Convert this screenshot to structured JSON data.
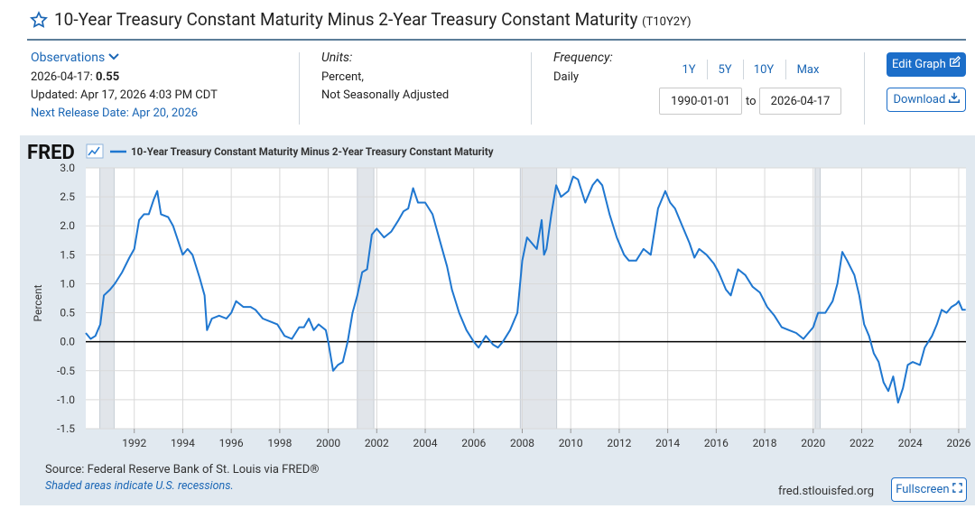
{
  "header": {
    "title": "10-Year Treasury Constant Maturity Minus 2-Year Treasury Constant Maturity",
    "ticker": "(T10Y2Y)"
  },
  "info": {
    "observations_label": "Observations",
    "obs_date": "2026-04-17:",
    "obs_value": 0.55,
    "updated": "Updated: Apr 17, 2026 4:03 PM CDT",
    "next_release": "Next Release Date: Apr 20, 2026",
    "units_label": "Units:",
    "units_lines": [
      "Percent,",
      "Not Seasonally Adjusted"
    ],
    "frequency_label": "Frequency:",
    "frequency": "Daily"
  },
  "controls": {
    "ranges": [
      "1Y",
      "5Y",
      "10Y",
      "Max"
    ],
    "start_date": "1990-01-01",
    "to": "to",
    "end_date": "2026-04-17",
    "edit": "Edit Graph",
    "download": "Download"
  },
  "footer": {
    "source": "Source: Federal Reserve Bank of St. Louis via FRED®",
    "note": "Shaded areas indicate U.S. recessions.",
    "site": "fred.stlouisfed.org",
    "fullscreen": "Fullscreen"
  },
  "chart_data": {
    "type": "line",
    "logo": "FRED",
    "ylabel": "Percent",
    "xlim": [
      1990,
      2026.3
    ],
    "xticks": [
      1992,
      1994,
      1996,
      1998,
      2000,
      2002,
      2004,
      2006,
      2008,
      2010,
      2012,
      2014,
      2016,
      2018,
      2020,
      2022,
      2024,
      2026
    ],
    "ylim": [
      -1.5,
      3
    ],
    "yticks": [
      {
        "value": 3,
        "label": "3.0"
      },
      2.5,
      {
        "value": 2,
        "label": "2.0"
      },
      1.5,
      {
        "value": 1,
        "label": "1.0"
      },
      0.5,
      {
        "value": 0,
        "label": "0.0"
      },
      -0.5,
      {
        "value": -1,
        "label": "-1.0"
      },
      -1.5
    ],
    "grid": true,
    "recessions": [
      [
        1990.58,
        1991.17
      ],
      [
        2001.2,
        2001.88
      ],
      [
        2007.92,
        2009.42
      ],
      [
        2020.08,
        2020.29
      ]
    ],
    "recession_color": "#e1e5ea",
    "series": [
      {
        "name": "10-Year Treasury Constant Maturity Minus 2-Year Treasury Constant Maturity",
        "color": "#1f77d0",
        "x": [
          1990.0,
          1990.2,
          1990.4,
          1990.6,
          1990.75,
          1991.0,
          1991.2,
          1991.5,
          1991.8,
          1992.0,
          1992.2,
          1992.4,
          1992.6,
          1992.8,
          1992.95,
          1993.1,
          1993.4,
          1993.6,
          1993.8,
          1994.0,
          1994.2,
          1994.4,
          1994.7,
          1994.9,
          1995.0,
          1995.2,
          1995.5,
          1995.8,
          1996.0,
          1996.2,
          1996.5,
          1996.8,
          1997.0,
          1997.3,
          1997.6,
          1997.9,
          1998.2,
          1998.5,
          1998.8,
          1999.0,
          1999.2,
          1999.4,
          1999.6,
          1999.9,
          2000.0,
          2000.2,
          2000.4,
          2000.6,
          2000.8,
          2001.0,
          2001.2,
          2001.4,
          2001.6,
          2001.8,
          2002.0,
          2002.3,
          2002.6,
          2002.9,
          2003.1,
          2003.3,
          2003.5,
          2003.7,
          2004.0,
          2004.3,
          2004.6,
          2004.9,
          2005.1,
          2005.4,
          2005.7,
          2006.0,
          2006.2,
          2006.5,
          2006.8,
          2007.0,
          2007.2,
          2007.5,
          2007.8,
          2008.0,
          2008.2,
          2008.4,
          2008.6,
          2008.8,
          2008.9,
          2009.0,
          2009.2,
          2009.4,
          2009.6,
          2009.9,
          2010.1,
          2010.3,
          2010.6,
          2010.9,
          2011.1,
          2011.3,
          2011.6,
          2011.9,
          2012.2,
          2012.4,
          2012.7,
          2013.0,
          2013.3,
          2013.6,
          2013.9,
          2014.1,
          2014.3,
          2014.6,
          2014.9,
          2015.1,
          2015.3,
          2015.6,
          2015.9,
          2016.1,
          2016.4,
          2016.6,
          2016.9,
          2017.2,
          2017.5,
          2017.8,
          2018.1,
          2018.4,
          2018.7,
          2019.0,
          2019.3,
          2019.6,
          2019.8,
          2020.0,
          2020.2,
          2020.5,
          2020.8,
          2021.0,
          2021.2,
          2021.4,
          2021.7,
          2021.9,
          2022.1,
          2022.3,
          2022.5,
          2022.7,
          2022.9,
          2023.1,
          2023.3,
          2023.5,
          2023.7,
          2023.9,
          2024.1,
          2024.4,
          2024.6,
          2024.9,
          2025.1,
          2025.3,
          2025.5,
          2025.7,
          2025.9,
          2026.0,
          2026.15,
          2026.29
        ],
        "values": [
          0.15,
          0.05,
          0.1,
          0.3,
          0.8,
          0.9,
          1.0,
          1.2,
          1.45,
          1.6,
          2.1,
          2.2,
          2.2,
          2.45,
          2.6,
          2.2,
          2.15,
          2.0,
          1.75,
          1.5,
          1.6,
          1.5,
          1.1,
          0.8,
          0.2,
          0.4,
          0.45,
          0.4,
          0.5,
          0.7,
          0.6,
          0.6,
          0.55,
          0.4,
          0.35,
          0.3,
          0.1,
          0.05,
          0.25,
          0.25,
          0.4,
          0.2,
          0.3,
          0.2,
          0.0,
          -0.5,
          -0.4,
          -0.35,
          0.0,
          0.5,
          0.8,
          1.2,
          1.25,
          1.85,
          1.95,
          1.8,
          1.9,
          2.1,
          2.25,
          2.3,
          2.65,
          2.4,
          2.4,
          2.2,
          1.75,
          1.3,
          0.9,
          0.5,
          0.2,
          0.0,
          -0.1,
          0.1,
          -0.05,
          -0.1,
          0.0,
          0.2,
          0.5,
          1.4,
          1.8,
          1.7,
          1.6,
          2.1,
          1.5,
          1.6,
          2.2,
          2.7,
          2.5,
          2.6,
          2.85,
          2.8,
          2.4,
          2.7,
          2.8,
          2.7,
          2.2,
          1.8,
          1.5,
          1.4,
          1.4,
          1.6,
          1.5,
          2.3,
          2.6,
          2.4,
          2.3,
          2.0,
          1.7,
          1.45,
          1.6,
          1.5,
          1.35,
          1.2,
          0.9,
          0.8,
          1.25,
          1.15,
          0.95,
          0.85,
          0.6,
          0.45,
          0.25,
          0.2,
          0.15,
          0.05,
          0.15,
          0.25,
          0.5,
          0.5,
          0.7,
          1.0,
          1.55,
          1.4,
          1.15,
          0.8,
          0.3,
          0.1,
          -0.2,
          -0.35,
          -0.7,
          -0.85,
          -0.6,
          -1.05,
          -0.8,
          -0.4,
          -0.35,
          -0.4,
          -0.1,
          0.1,
          0.3,
          0.55,
          0.5,
          0.6,
          0.65,
          0.7,
          0.55,
          0.55
        ]
      }
    ]
  }
}
